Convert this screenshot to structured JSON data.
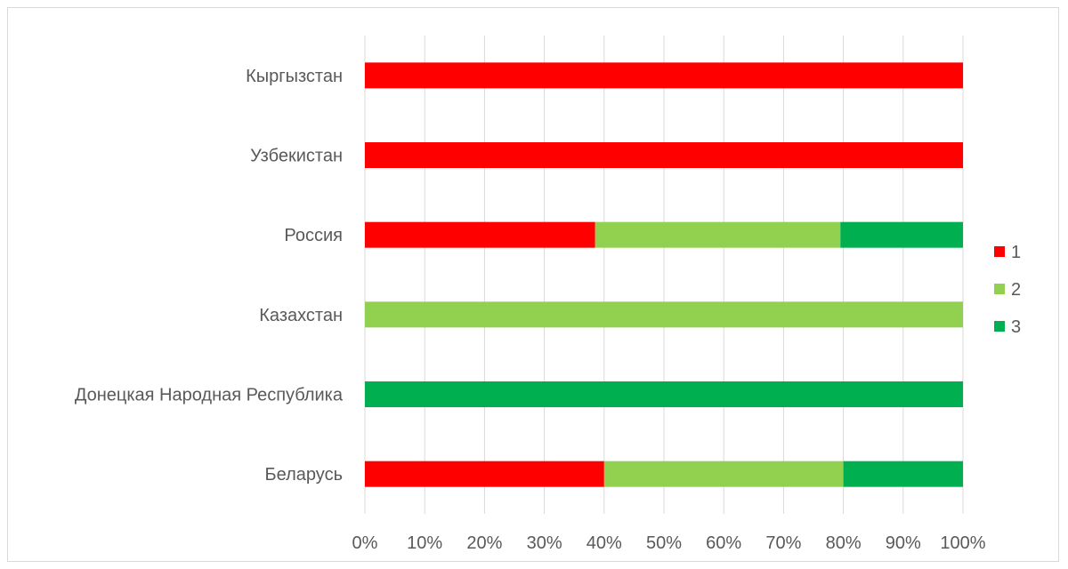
{
  "chart_data": {
    "type": "bar",
    "orientation": "horizontal",
    "stacked": "percent",
    "categories": [
      "Кыргызстан",
      "Узбекистан",
      "Россия",
      "Казахстан",
      "Донецкая Народная Республика",
      "Беларусь"
    ],
    "series": [
      {
        "name": "1",
        "color": "#ff0000",
        "values": [
          100,
          100,
          38.5,
          0,
          0,
          40
        ]
      },
      {
        "name": "2",
        "color": "#92d050",
        "values": [
          0,
          0,
          41,
          100,
          0,
          40
        ]
      },
      {
        "name": "3",
        "color": "#00b050",
        "values": [
          0,
          0,
          20.5,
          0,
          100,
          20
        ]
      }
    ],
    "x_ticks": [
      "0%",
      "10%",
      "20%",
      "30%",
      "40%",
      "50%",
      "60%",
      "70%",
      "80%",
      "90%",
      "100%"
    ],
    "xlim": [
      0,
      100
    ],
    "grid": "vertical",
    "legend_position": "right"
  }
}
